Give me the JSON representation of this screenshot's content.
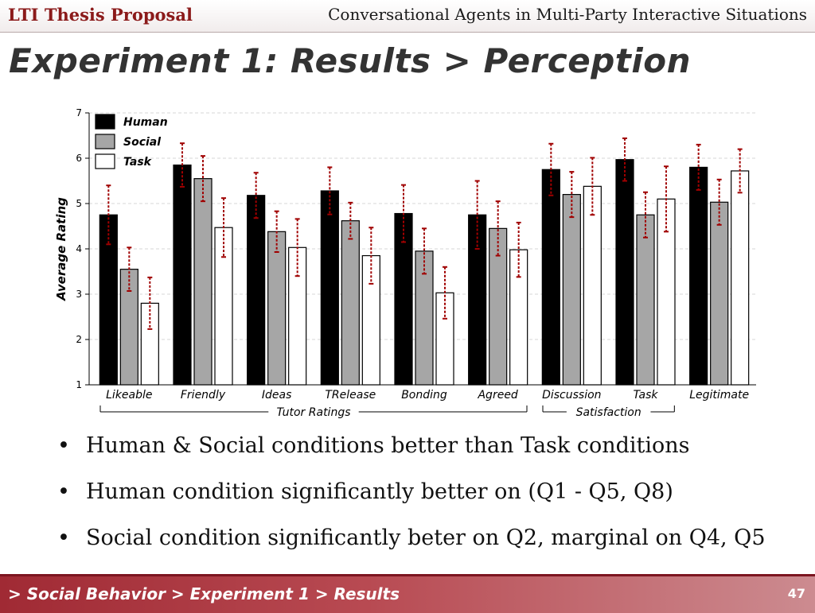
{
  "header": {
    "left_title": "LTI Thesis Proposal",
    "right_title": "Conversational Agents in Multi-Party Interactive Situations"
  },
  "slide": {
    "title": "Experiment 1: Results > Perception",
    "bullets": [
      "Human & Social conditions better than Task conditions",
      "Human condition significantly better on (Q1 - Q5, Q8)",
      "Social condition significantly beter on Q2, marginal on Q4, Q5"
    ]
  },
  "footer": {
    "breadcrumb": "> Social Behavior > Experiment 1 > Results",
    "page_number": "47"
  },
  "chart_data": {
    "type": "bar",
    "ylabel": "Average Rating",
    "ylim": [
      1,
      7
    ],
    "yticks": [
      1,
      2,
      3,
      4,
      5,
      6,
      7
    ],
    "grid": true,
    "legend_position": "top-left",
    "categories": [
      "Likeable",
      "Friendly",
      "Ideas",
      "TRelease",
      "Bonding",
      "Agreed",
      "Discussion",
      "Task",
      "Legitimate"
    ],
    "groups": [
      {
        "label": "Tutor Ratings",
        "categories": [
          "Likeable",
          "Friendly",
          "Ideas",
          "TRelease",
          "Bonding",
          "Agreed"
        ]
      },
      {
        "label": "Satisfaction",
        "categories": [
          "Discussion",
          "Task"
        ]
      }
    ],
    "series": [
      {
        "name": "Human",
        "color": "#000000",
        "values": [
          4.75,
          5.85,
          5.18,
          5.28,
          4.78,
          4.75,
          5.75,
          5.97,
          5.8
        ],
        "errors": [
          0.65,
          0.48,
          0.5,
          0.52,
          0.63,
          0.75,
          0.57,
          0.47,
          0.5
        ]
      },
      {
        "name": "Social",
        "color": "#a6a6a6",
        "values": [
          3.55,
          5.55,
          4.38,
          4.62,
          3.95,
          4.45,
          5.2,
          4.75,
          5.03
        ],
        "errors": [
          0.48,
          0.5,
          0.45,
          0.4,
          0.5,
          0.6,
          0.5,
          0.5,
          0.5
        ]
      },
      {
        "name": "Task",
        "color": "#ffffff",
        "values": [
          2.8,
          4.47,
          4.03,
          3.85,
          3.03,
          3.98,
          5.38,
          5.1,
          5.72
        ],
        "errors": [
          0.57,
          0.65,
          0.63,
          0.62,
          0.57,
          0.6,
          0.63,
          0.72,
          0.48
        ]
      }
    ],
    "error_bar_color": "#a00000"
  }
}
